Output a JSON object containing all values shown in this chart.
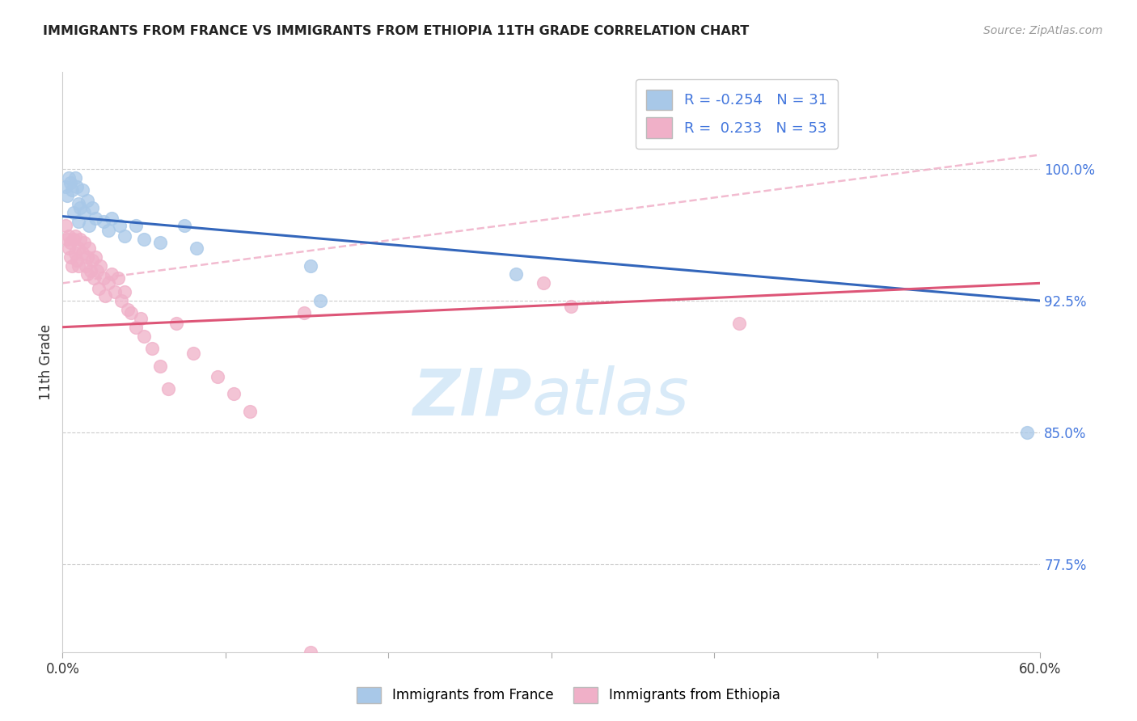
{
  "title": "IMMIGRANTS FROM FRANCE VS IMMIGRANTS FROM ETHIOPIA 11TH GRADE CORRELATION CHART",
  "source": "Source: ZipAtlas.com",
  "ylabel": "11th Grade",
  "xlim": [
    0.0,
    0.6
  ],
  "ylim": [
    0.725,
    1.055
  ],
  "yticks": [
    0.775,
    0.85,
    0.925,
    1.0
  ],
  "ytick_labels": [
    "77.5%",
    "85.0%",
    "92.5%",
    "100.0%"
  ],
  "blue_color": "#a8c8e8",
  "pink_color": "#f0b0c8",
  "blue_line_color": "#3366bb",
  "pink_line_color": "#dd5577",
  "R_blue": -0.254,
  "N_blue": 31,
  "R_pink": 0.233,
  "N_pink": 53,
  "blue_line_x0": 0.0,
  "blue_line_y0": 0.973,
  "blue_line_x1": 0.6,
  "blue_line_y1": 0.925,
  "pink_line_x0": 0.0,
  "pink_line_y0": 0.91,
  "pink_line_x1": 0.6,
  "pink_line_y1": 0.935,
  "dash_line_x0": 0.0,
  "dash_line_y0": 0.935,
  "dash_line_x1": 0.6,
  "dash_line_y1": 1.008,
  "blue_scatter_x": [
    0.002,
    0.003,
    0.004,
    0.005,
    0.006,
    0.007,
    0.008,
    0.009,
    0.01,
    0.01,
    0.011,
    0.012,
    0.013,
    0.015,
    0.016,
    0.018,
    0.02,
    0.025,
    0.028,
    0.03,
    0.035,
    0.038,
    0.045,
    0.05,
    0.06,
    0.075,
    0.082,
    0.152,
    0.158,
    0.278,
    0.592
  ],
  "blue_scatter_y": [
    0.99,
    0.985,
    0.995,
    0.992,
    0.988,
    0.975,
    0.995,
    0.99,
    0.98,
    0.97,
    0.978,
    0.988,
    0.975,
    0.982,
    0.968,
    0.978,
    0.972,
    0.97,
    0.965,
    0.972,
    0.968,
    0.962,
    0.968,
    0.96,
    0.958,
    0.968,
    0.955,
    0.945,
    0.925,
    0.94,
    0.85
  ],
  "pink_scatter_x": [
    0.002,
    0.003,
    0.004,
    0.004,
    0.005,
    0.005,
    0.006,
    0.007,
    0.008,
    0.008,
    0.009,
    0.01,
    0.01,
    0.011,
    0.012,
    0.013,
    0.014,
    0.015,
    0.015,
    0.016,
    0.017,
    0.018,
    0.019,
    0.02,
    0.021,
    0.022,
    0.023,
    0.025,
    0.026,
    0.028,
    0.03,
    0.032,
    0.034,
    0.036,
    0.038,
    0.04,
    0.042,
    0.045,
    0.048,
    0.05,
    0.055,
    0.06,
    0.065,
    0.07,
    0.08,
    0.095,
    0.105,
    0.115,
    0.148,
    0.152,
    0.295,
    0.312,
    0.415
  ],
  "pink_scatter_y": [
    0.968,
    0.96,
    0.962,
    0.955,
    0.95,
    0.958,
    0.945,
    0.96,
    0.952,
    0.962,
    0.948,
    0.955,
    0.945,
    0.96,
    0.952,
    0.958,
    0.945,
    0.95,
    0.94,
    0.955,
    0.942,
    0.948,
    0.938,
    0.95,
    0.942,
    0.932,
    0.945,
    0.938,
    0.928,
    0.935,
    0.94,
    0.93,
    0.938,
    0.925,
    0.93,
    0.92,
    0.918,
    0.91,
    0.915,
    0.905,
    0.898,
    0.888,
    0.875,
    0.912,
    0.895,
    0.882,
    0.872,
    0.862,
    0.918,
    0.725,
    0.935,
    0.922,
    0.912
  ],
  "watermark_zip": "ZIP",
  "watermark_atlas": "atlas",
  "watermark_color": "#d8eaf8",
  "legend_blue_label": "Immigrants from France",
  "legend_pink_label": "Immigrants from Ethiopia",
  "background_color": "#ffffff",
  "grid_color": "#cccccc",
  "label_color": "#4477dd"
}
